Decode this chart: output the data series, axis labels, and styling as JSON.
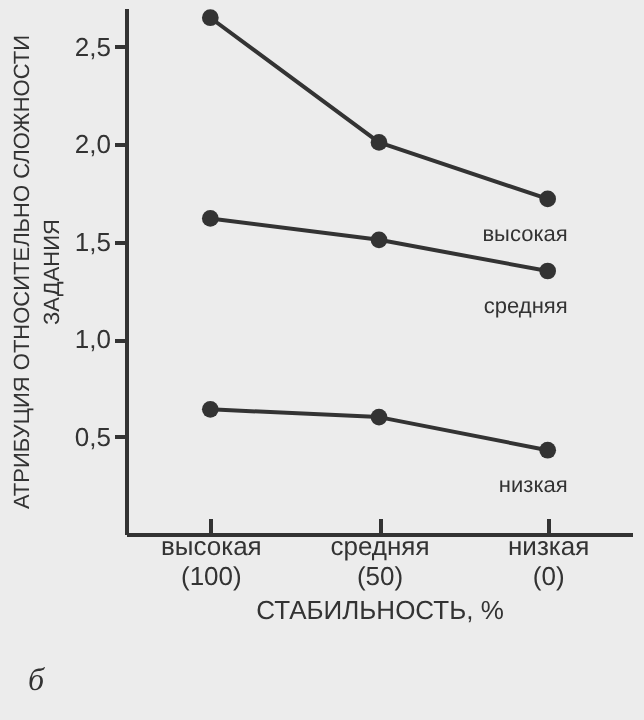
{
  "chart_data": {
    "type": "line",
    "ylabel": "АТРИБУЦИЯ ОТНОСИТЕЛЬНО СЛОЖНОСТИ ЗАДАНИЯ",
    "xlabel": "СТАБИЛЬНОСТЬ, %",
    "categories": [
      "высокая (100)",
      "средняя (50)",
      "низкая (0)"
    ],
    "series": [
      {
        "name": "высокая",
        "color": "#333333",
        "values": [
          2.65,
          2.01,
          1.72
        ]
      },
      {
        "name": "средняя",
        "color": "#333333",
        "values": [
          1.62,
          1.51,
          1.35
        ]
      },
      {
        "name": "низкая",
        "color": "#333333",
        "values": [
          0.64,
          0.6,
          0.43
        ]
      }
    ],
    "ylim": [
      0,
      2.7
    ],
    "yticks": [
      {
        "value": 0.5,
        "label": "0,5"
      },
      {
        "value": 1.0,
        "label": "1,0"
      },
      {
        "value": 1.5,
        "label": "1,5"
      },
      {
        "value": 2.0,
        "label": "2,0"
      },
      {
        "value": 2.5,
        "label": "2,5"
      }
    ],
    "grid": false,
    "marker": "circle",
    "line_style": "solid",
    "annotations": [
      "б"
    ]
  }
}
